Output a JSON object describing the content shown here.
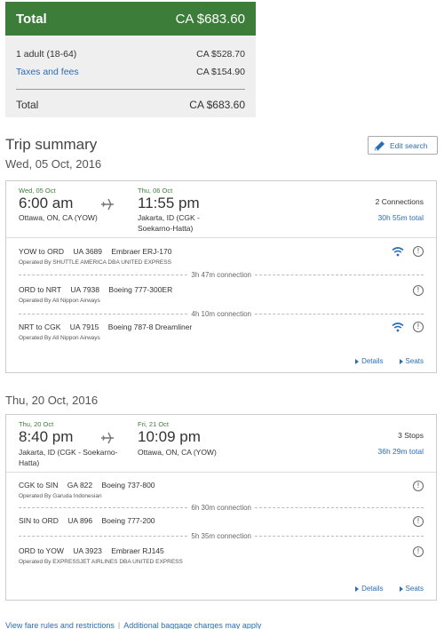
{
  "price": {
    "header_label": "Total",
    "header_value": "CA $683.60",
    "rows": [
      {
        "label": "1 adult (18-64)",
        "value": "CA $528.70"
      },
      {
        "label": "Taxes and fees",
        "value": "CA $154.90"
      }
    ],
    "total_label": "Total",
    "total_value": "CA $683.60"
  },
  "summary": {
    "title": "Trip summary",
    "edit_label": "Edit search",
    "date_outbound": "Wed, 05 Oct, 2016",
    "date_return": "Thu, 20 Oct, 2016"
  },
  "outbound": {
    "depart_date": "Wed, 05 Oct",
    "depart_time": "6:00 am",
    "depart_airport_1": "Ottawa, ON, CA (YOW)",
    "arrive_date": "Thu, 06 Oct",
    "arrive_time": "11:55 pm",
    "arrive_airport_1": "Jakarta, ID (CGK -",
    "arrive_airport_2": "Soekarno-Hatta)",
    "stops": "2 Connections",
    "duration": "30h 55m total",
    "legs": [
      {
        "route": "YOW to ORD",
        "flight": "UA 3689",
        "aircraft": "Embraer ERJ-170",
        "operator": "Operated By SHUTTLE AMERICA DBA UNITED EXPRESS"
      },
      {
        "route": "ORD to NRT",
        "flight": "UA 7938",
        "aircraft": "Boeing 777-300ER",
        "operator": "Operated By All Nippon Airways"
      },
      {
        "route": "NRT to CGK",
        "flight": "UA 7915",
        "aircraft": "Boeing 787-8 Dreamliner",
        "operator": "Operated By All Nippon Airways"
      }
    ],
    "connections": [
      "3h 47m connection",
      "4h 10m connection"
    ],
    "details_label": "Details",
    "seats_label": "Seats"
  },
  "return": {
    "depart_date": "Thu, 20 Oct",
    "depart_time": "8:40 pm",
    "depart_airport_1": "Jakarta, ID (CGK - Soekarno-",
    "depart_airport_2": "Hatta)",
    "arrive_date": "Fri, 21 Oct",
    "arrive_time": "10:09 pm",
    "arrive_airport_1": "Ottawa, ON, CA (YOW)",
    "stops": "3 Stops",
    "duration": "36h 29m total",
    "legs": [
      {
        "route": "CGK to SIN",
        "flight": "GA 822",
        "aircraft": "Boeing 737-800",
        "operator": "Operated By Garuda Indonesian"
      },
      {
        "route": "SIN to ORD",
        "flight": "UA 896",
        "aircraft": "Boeing 777-200",
        "operator": ""
      },
      {
        "route": "ORD to YOW",
        "flight": "UA 3923",
        "aircraft": "Embraer RJ145",
        "operator": "Operated By EXPRESSJET AIRLINES DBA UNITED EXPRESS"
      }
    ],
    "connections": [
      "6h 30m connection",
      "5h 35m connection"
    ],
    "details_label": "Details",
    "seats_label": "Seats"
  },
  "footer": {
    "fare_rules": "View fare rules and restrictions",
    "separator": "|",
    "baggage": "Additional baggage charges may apply"
  },
  "colors": {
    "accent_green": "#3d7d3a",
    "link_blue": "#2a6db4"
  }
}
